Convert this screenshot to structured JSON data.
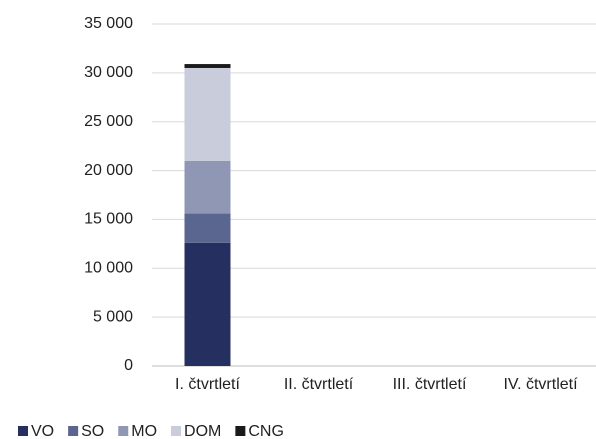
{
  "chart_data": {
    "type": "stacked_bar",
    "categories": [
      "I. čtvrtletí",
      "II. čtvrtletí",
      "III. čtvrtletí",
      "IV. čtvrtletí"
    ],
    "series": [
      {
        "name": "VO",
        "color": "#253060",
        "values": [
          12600,
          null,
          null,
          null
        ]
      },
      {
        "name": "SO",
        "color": "#5a6690",
        "values": [
          3000,
          null,
          null,
          null
        ]
      },
      {
        "name": "MO",
        "color": "#9097b5",
        "values": [
          5400,
          null,
          null,
          null
        ]
      },
      {
        "name": "DOM",
        "color": "#c8ccdb",
        "values": [
          9500,
          null,
          null,
          null
        ]
      },
      {
        "name": "CNG",
        "color": "#1a1a1a",
        "values": [
          400,
          null,
          null,
          null
        ]
      }
    ],
    "ylim": [
      0,
      35000
    ],
    "yticks": [
      0,
      {
        "value": 5000,
        "label": "5 000"
      },
      {
        "value": 10000,
        "label": "10 000"
      },
      {
        "value": 15000,
        "label": "15 000"
      },
      {
        "value": 20000,
        "label": "20 000"
      },
      {
        "value": 25000,
        "label": "25 000"
      },
      {
        "value": 30000,
        "label": "30 000"
      },
      {
        "value": 35000,
        "label": "35 000"
      }
    ],
    "grid": true,
    "legend": "bottom-left"
  }
}
